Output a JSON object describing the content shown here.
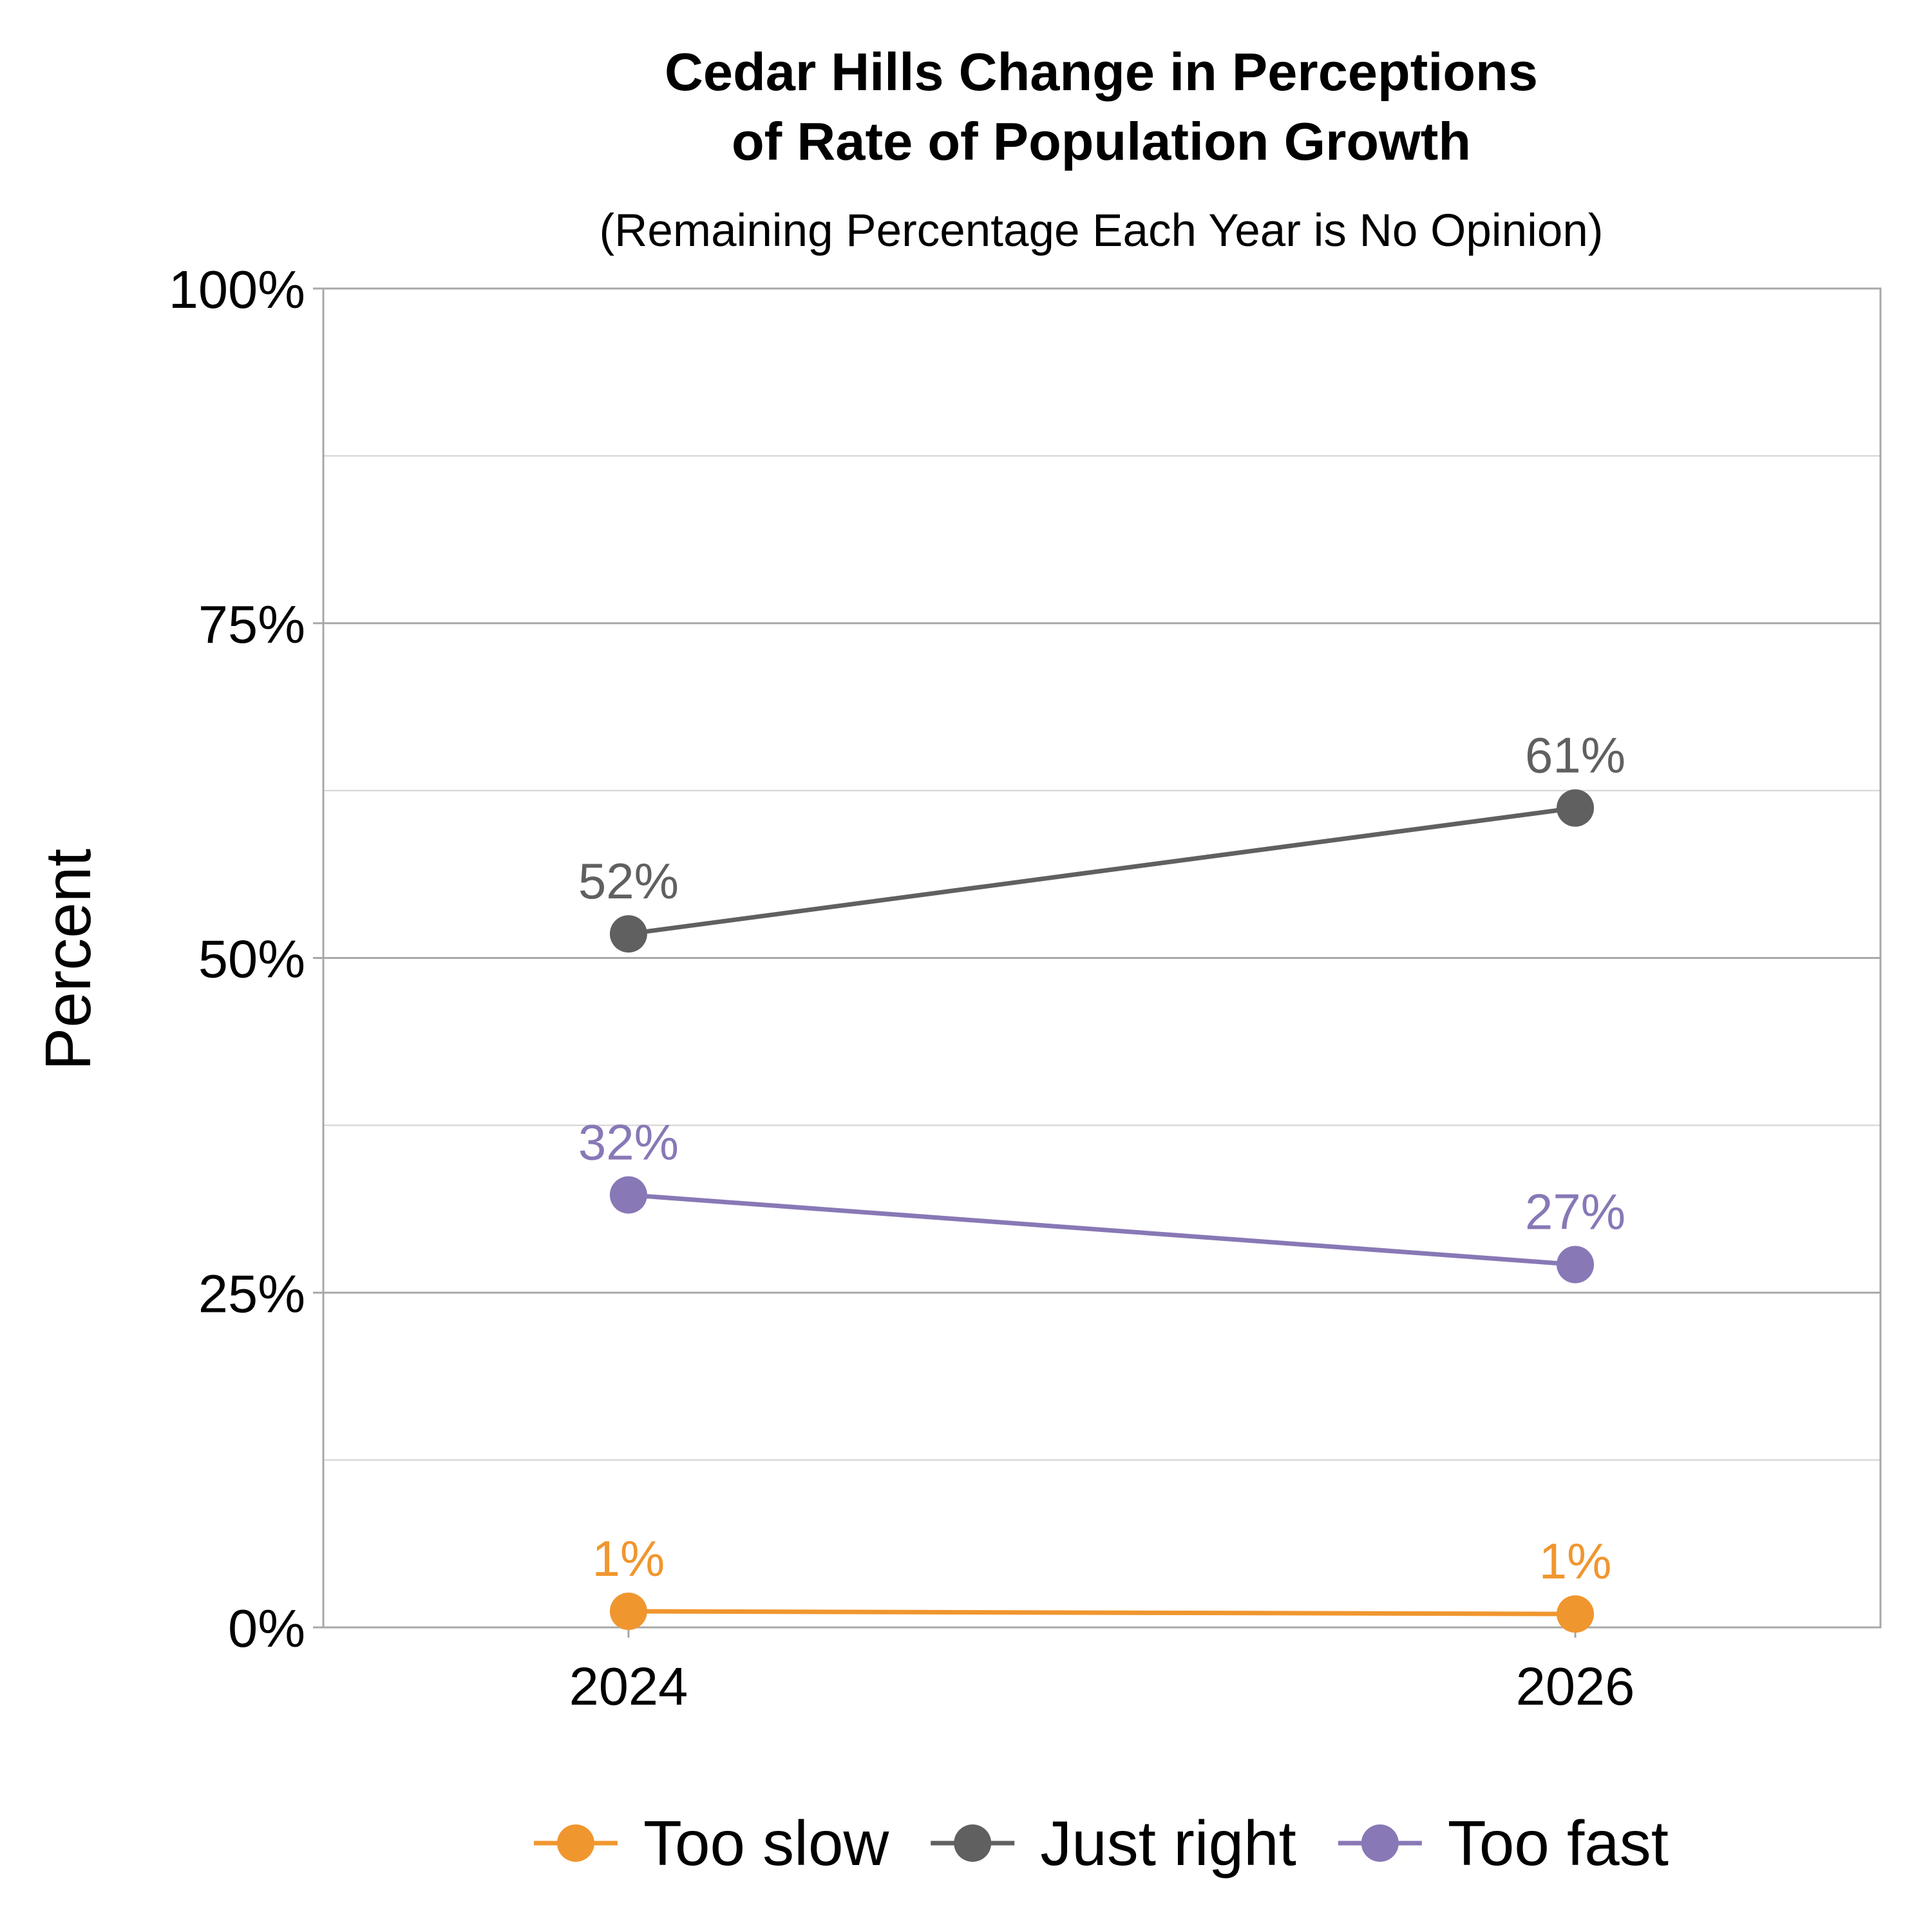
{
  "chart_data": {
    "type": "line",
    "title_line1": "Cedar Hills Change in Perceptions",
    "title_line2": "of Rate of Population Growth",
    "subtitle": "(Remaining Percentage Each Year is No Opinion)",
    "xlabel": "",
    "ylabel": "Percent",
    "categories": [
      "2024",
      "2026"
    ],
    "ylim": [
      0,
      100
    ],
    "yticks": [
      {
        "value": 0,
        "label": "0%"
      },
      {
        "value": 25,
        "label": "25%"
      },
      {
        "value": 50,
        "label": "50%"
      },
      {
        "value": 75,
        "label": "75%"
      },
      {
        "value": 100,
        "label": "100%"
      }
    ],
    "minor_gridlines": [
      12.5,
      37.5,
      62.5,
      87.5
    ],
    "grid": true,
    "legend_position": "bottom",
    "series": [
      {
        "name": "Too slow",
        "color": "#F0962F",
        "values": [
          1.2,
          1.0
        ],
        "labels": [
          "1%",
          "1%"
        ]
      },
      {
        "name": "Just right",
        "color": "#606060",
        "values": [
          51.8,
          61.2
        ],
        "labels": [
          "52%",
          "61%"
        ]
      },
      {
        "name": "Too fast",
        "color": "#8878B6",
        "values": [
          32.3,
          27.1
        ],
        "labels": [
          "32%",
          "27%"
        ]
      }
    ]
  }
}
